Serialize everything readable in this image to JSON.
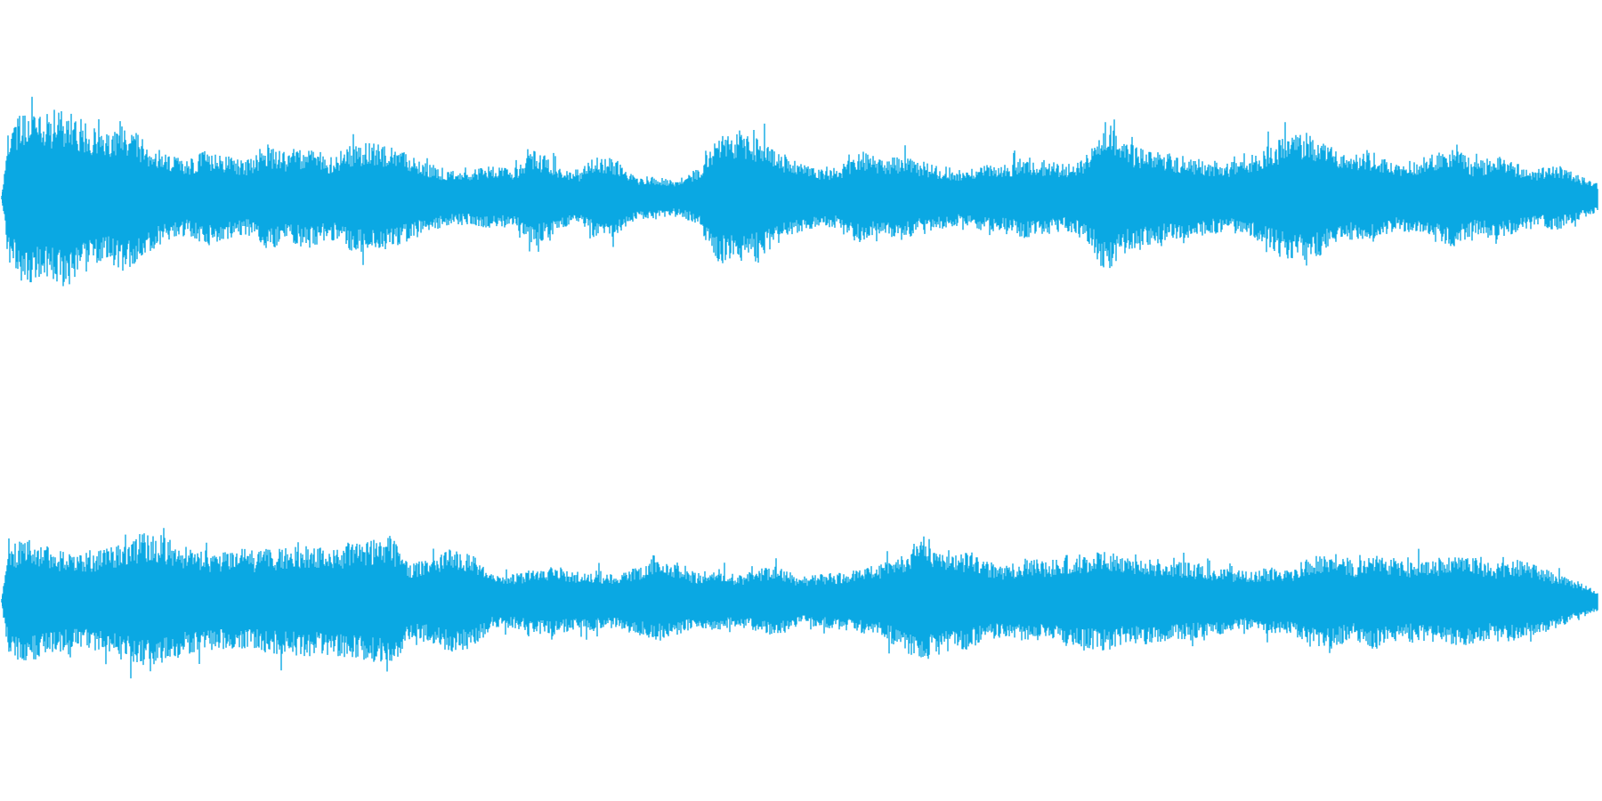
{
  "waveform": {
    "color": "#0aa8e3",
    "background": "#ffffff",
    "channel_count": 2,
    "channels": [
      {
        "name": "",
        "envelope": [
          0.6,
          0.95,
          0.92,
          0.98,
          0.88,
          0.7,
          0.82,
          0.62,
          0.48,
          0.4,
          0.52,
          0.46,
          0.4,
          0.56,
          0.48,
          0.56,
          0.44,
          0.58,
          0.62,
          0.55,
          0.46,
          0.36,
          0.28,
          0.3,
          0.34,
          0.3,
          0.52,
          0.4,
          0.24,
          0.44,
          0.42,
          0.22,
          0.22,
          0.18,
          0.28,
          0.74,
          0.7,
          0.66,
          0.5,
          0.38,
          0.3,
          0.34,
          0.52,
          0.4,
          0.46,
          0.36,
          0.34,
          0.28,
          0.36,
          0.36,
          0.44,
          0.4,
          0.36,
          0.46,
          0.86,
          0.6,
          0.52,
          0.48,
          0.44,
          0.4,
          0.38,
          0.42,
          0.58,
          0.7,
          0.72,
          0.56,
          0.46,
          0.5,
          0.36,
          0.4,
          0.48,
          0.56,
          0.38,
          0.46,
          0.38,
          0.3,
          0.36,
          0.24,
          0.14
        ]
      },
      {
        "name": "",
        "envelope": [
          0.56,
          0.72,
          0.66,
          0.58,
          0.54,
          0.62,
          0.7,
          0.78,
          0.74,
          0.62,
          0.58,
          0.56,
          0.54,
          0.6,
          0.62,
          0.64,
          0.62,
          0.66,
          0.72,
          0.76,
          0.44,
          0.48,
          0.6,
          0.54,
          0.3,
          0.3,
          0.36,
          0.4,
          0.32,
          0.34,
          0.3,
          0.38,
          0.44,
          0.4,
          0.32,
          0.36,
          0.28,
          0.36,
          0.4,
          0.26,
          0.3,
          0.32,
          0.36,
          0.42,
          0.56,
          0.72,
          0.6,
          0.56,
          0.48,
          0.4,
          0.48,
          0.44,
          0.52,
          0.54,
          0.58,
          0.48,
          0.5,
          0.46,
          0.44,
          0.4,
          0.36,
          0.32,
          0.38,
          0.36,
          0.52,
          0.56,
          0.42,
          0.58,
          0.46,
          0.44,
          0.48,
          0.52,
          0.5,
          0.42,
          0.48,
          0.4,
          0.3,
          0.2,
          0.1
        ]
      }
    ]
  }
}
